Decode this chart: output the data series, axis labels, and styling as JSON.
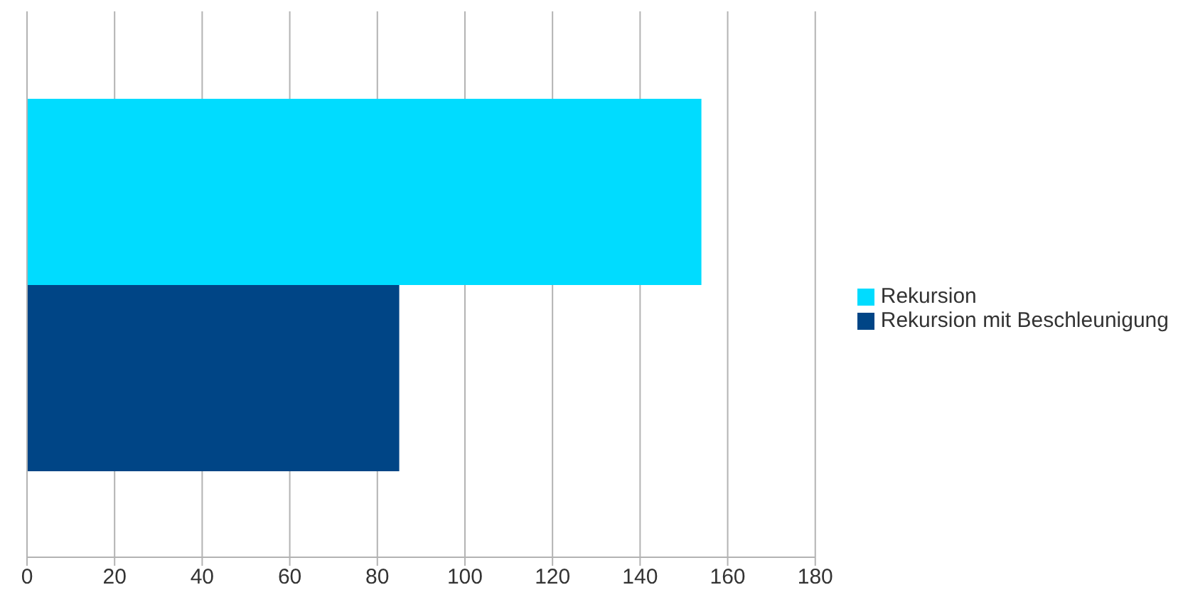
{
  "chart_data": {
    "type": "bar",
    "orientation": "horizontal",
    "categories": [
      null
    ],
    "series": [
      {
        "name": "Rekursion",
        "color": "#00dcff",
        "values": [
          154
        ]
      },
      {
        "name": "Rekursion mit Beschleunigung",
        "color": "#004586",
        "values": [
          85
        ]
      }
    ],
    "xlim": [
      0,
      180
    ],
    "xticks": [
      0,
      20,
      40,
      60,
      80,
      100,
      120,
      140,
      160,
      180
    ],
    "grid": "x",
    "legend": "right"
  }
}
